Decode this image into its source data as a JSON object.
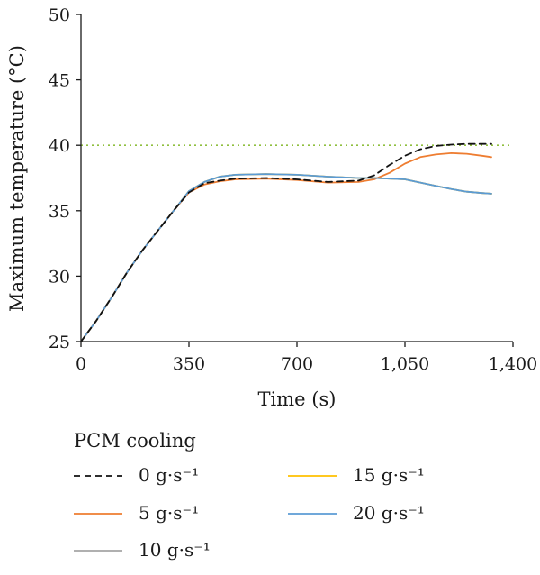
{
  "chart_data": {
    "type": "line",
    "title": "",
    "xlabel": "Time (s)",
    "ylabel": "Maximum temperature (°C)",
    "xlim": [
      0,
      1400
    ],
    "ylim": [
      25,
      50
    ],
    "x_ticks": [
      0,
      350,
      700,
      1050,
      1400
    ],
    "x_tick_labels": [
      "0",
      "350",
      "700",
      "1,050",
      "1,400"
    ],
    "y_ticks": [
      25,
      30,
      35,
      40,
      45,
      50
    ],
    "y_tick_labels": [
      "25",
      "30",
      "35",
      "40",
      "45",
      "50"
    ],
    "grid": false,
    "reference_line": {
      "y": 40,
      "color": "#8fbf3f",
      "style": "dotted"
    },
    "legend": {
      "title": "PCM cooling",
      "placement": "bottom"
    },
    "series": [
      {
        "name": "0 g·s⁻¹",
        "color": "#111111",
        "dash": "dashed",
        "x": [
          0,
          50,
          100,
          150,
          200,
          250,
          300,
          350,
          400,
          450,
          500,
          600,
          700,
          800,
          900,
          950,
          1000,
          1050,
          1100,
          1150,
          1200,
          1250,
          1300,
          1330
        ],
        "y": [
          25.0,
          26.6,
          28.4,
          30.3,
          32.0,
          33.5,
          35.0,
          36.4,
          37.1,
          37.3,
          37.45,
          37.5,
          37.4,
          37.2,
          37.3,
          37.7,
          38.5,
          39.2,
          39.7,
          39.95,
          40.05,
          40.1,
          40.1,
          40.1
        ]
      },
      {
        "name": "5 g·s⁻¹",
        "color": "#ee7d31",
        "dash": "solid",
        "x": [
          0,
          50,
          100,
          150,
          200,
          250,
          300,
          350,
          400,
          450,
          500,
          600,
          700,
          800,
          900,
          950,
          1000,
          1050,
          1100,
          1150,
          1200,
          1250,
          1300,
          1330
        ],
        "y": [
          25.0,
          26.6,
          28.4,
          30.3,
          32.0,
          33.5,
          35.0,
          36.4,
          37.0,
          37.25,
          37.4,
          37.45,
          37.35,
          37.15,
          37.2,
          37.4,
          37.9,
          38.6,
          39.1,
          39.3,
          39.4,
          39.35,
          39.2,
          39.1
        ]
      },
      {
        "name": "10 g·s⁻¹",
        "color": "#a5a5a5",
        "dash": "solid",
        "x": [
          0,
          50,
          100,
          150,
          200,
          250,
          300,
          350,
          400,
          450,
          500,
          600,
          700,
          800,
          900,
          950,
          1000,
          1050,
          1100,
          1150,
          1200,
          1250,
          1300,
          1330
        ],
        "y": [
          25.0,
          26.6,
          28.4,
          30.3,
          32.0,
          33.5,
          35.0,
          36.5,
          37.2,
          37.6,
          37.75,
          37.8,
          37.75,
          37.6,
          37.5,
          37.5,
          37.45,
          37.4,
          37.15,
          36.9,
          36.65,
          36.45,
          36.35,
          36.3
        ]
      },
      {
        "name": "15 g·s⁻¹",
        "color": "#ffc000",
        "dash": "solid",
        "x": [
          0,
          50,
          100,
          150,
          200,
          250,
          300,
          350,
          400,
          450,
          500,
          600,
          700,
          800,
          900,
          950,
          1000,
          1050,
          1100,
          1150,
          1200,
          1250,
          1300,
          1330
        ],
        "y": [
          25.0,
          26.6,
          28.4,
          30.3,
          32.0,
          33.5,
          35.0,
          36.5,
          37.2,
          37.6,
          37.75,
          37.8,
          37.75,
          37.6,
          37.5,
          37.5,
          37.45,
          37.4,
          37.15,
          36.9,
          36.65,
          36.45,
          36.35,
          36.3
        ]
      },
      {
        "name": "20 g·s⁻¹",
        "color": "#5b9bd5",
        "dash": "solid",
        "x": [
          0,
          50,
          100,
          150,
          200,
          250,
          300,
          350,
          400,
          450,
          500,
          600,
          700,
          800,
          900,
          950,
          1000,
          1050,
          1100,
          1150,
          1200,
          1250,
          1300,
          1330
        ],
        "y": [
          25.0,
          26.6,
          28.4,
          30.3,
          32.0,
          33.5,
          35.0,
          36.5,
          37.2,
          37.6,
          37.75,
          37.8,
          37.75,
          37.6,
          37.5,
          37.5,
          37.45,
          37.4,
          37.15,
          36.9,
          36.65,
          36.45,
          36.35,
          36.3
        ]
      }
    ]
  }
}
